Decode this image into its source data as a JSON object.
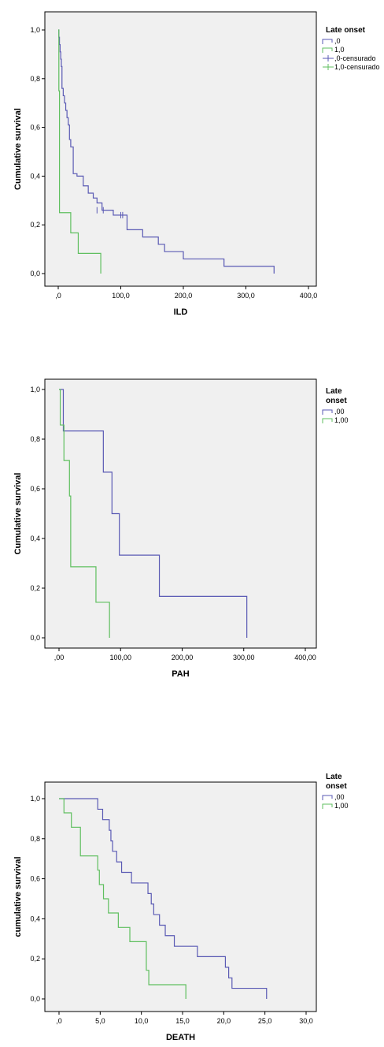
{
  "chart_data": [
    {
      "type": "line",
      "step": true,
      "grid": false,
      "legend_placement": "right",
      "xlabel": "ILD",
      "ylabel": "Cumulative survival",
      "xlim": [
        0,
        400
      ],
      "ylim": [
        0,
        1
      ],
      "x_ticks": [
        ",0",
        "100,0",
        "200,0",
        "300,0",
        "400,0"
      ],
      "x_tick_values": [
        0,
        100,
        200,
        300,
        400
      ],
      "y_ticks": [
        "0,0",
        "0,2",
        "0,4",
        "0,6",
        "0,8",
        "1,0"
      ],
      "y_tick_values": [
        0,
        0.2,
        0.4,
        0.6,
        0.8,
        1.0
      ],
      "legend_title": [
        "Late onset"
      ],
      "legend": [
        {
          "label": ",0",
          "color": "#5a5ab4",
          "symbol": "step"
        },
        {
          "label": "1,0",
          "color": "#5fbf5f",
          "symbol": "step"
        },
        {
          "label": ",0-censurado",
          "color": "#5a5ab4",
          "symbol": "cross"
        },
        {
          "label": "1,0-censurado",
          "color": "#5fbf5f",
          "symbol": "cross"
        }
      ],
      "series": [
        {
          "name": ",0",
          "color": "#5a5ab4",
          "x": [
            0,
            1,
            2,
            3,
            4,
            5,
            6,
            8,
            10,
            12,
            14,
            16,
            18,
            20,
            24,
            30,
            40,
            48,
            56,
            62,
            70,
            88,
            110,
            135,
            160,
            170,
            180,
            200,
            265,
            345
          ],
          "y": [
            1.0,
            0.97,
            0.94,
            0.91,
            0.88,
            0.85,
            0.76,
            0.73,
            0.7,
            0.67,
            0.64,
            0.61,
            0.55,
            0.52,
            0.41,
            0.4,
            0.36,
            0.33,
            0.31,
            0.29,
            0.26,
            0.24,
            0.18,
            0.15,
            0.12,
            0.09,
            0.09,
            0.06,
            0.03,
            0.0
          ]
        },
        {
          "name": "1,0",
          "color": "#5fbf5f",
          "x": [
            0,
            1,
            2,
            20,
            32,
            68
          ],
          "y": [
            1.0,
            0.75,
            0.25,
            0.167,
            0.083,
            0.0
          ]
        }
      ],
      "censored": [
        {
          "series": ",0",
          "x": [
            62,
            72,
            100,
            103
          ],
          "y": [
            0.26,
            0.26,
            0.24,
            0.24
          ]
        }
      ]
    },
    {
      "type": "line",
      "step": true,
      "grid": false,
      "legend_placement": "right",
      "xlabel": "PAH",
      "ylabel": "Cumulative survival",
      "xlim": [
        0,
        400
      ],
      "ylim": [
        0,
        1
      ],
      "x_ticks": [
        ",00",
        "100,00",
        "200,00",
        "300,00",
        "400,00"
      ],
      "x_tick_values": [
        0,
        100,
        200,
        300,
        400
      ],
      "y_ticks": [
        "0,0",
        "0,2",
        "0,4",
        "0,6",
        "0,8",
        "1,0"
      ],
      "y_tick_values": [
        0,
        0.2,
        0.4,
        0.6,
        0.8,
        1.0
      ],
      "legend_title": [
        "Late",
        "onset"
      ],
      "legend": [
        {
          "label": ",00",
          "color": "#5a5ab4",
          "symbol": "step"
        },
        {
          "label": "1,00",
          "color": "#5fbf5f",
          "symbol": "step"
        }
      ],
      "series": [
        {
          "name": ",00",
          "color": "#5a5ab4",
          "x": [
            0,
            7,
            72,
            86,
            98,
            163,
            305
          ],
          "y": [
            1.0,
            0.833,
            0.667,
            0.5,
            0.333,
            0.167,
            0.0
          ]
        },
        {
          "name": "1,00",
          "color": "#5fbf5f",
          "x": [
            0,
            2,
            8,
            17,
            19,
            60,
            82
          ],
          "y": [
            1.0,
            0.857,
            0.714,
            0.571,
            0.286,
            0.143,
            0.0
          ]
        }
      ],
      "censored": []
    },
    {
      "type": "line",
      "step": true,
      "grid": false,
      "legend_placement": "right",
      "xlabel": "DEATH",
      "ylabel": "cumulative survival",
      "xlim": [
        0,
        30
      ],
      "ylim": [
        0,
        1
      ],
      "x_ticks": [
        ",0",
        "5,0",
        "10,0",
        "15,0",
        "20,0",
        "25,0",
        "30,0"
      ],
      "x_tick_values": [
        0,
        5,
        10,
        15,
        20,
        25,
        30
      ],
      "y_ticks": [
        "0,0",
        "0,2",
        "0,4",
        "0,6",
        "0,8",
        "1,0"
      ],
      "y_tick_values": [
        0,
        0.2,
        0.4,
        0.6,
        0.8,
        1.0
      ],
      "legend_title": [
        "Late",
        "onset"
      ],
      "legend": [
        {
          "label": ",00",
          "color": "#5a5ab4",
          "symbol": "step"
        },
        {
          "label": "1,00",
          "color": "#5fbf5f",
          "symbol": "step"
        }
      ],
      "series": [
        {
          "name": ",00",
          "color": "#5a5ab4",
          "x": [
            0,
            4.7,
            5.3,
            6.1,
            6.3,
            6.5,
            7.0,
            7.6,
            8.8,
            10.8,
            11.2,
            11.5,
            12.2,
            12.9,
            14.0,
            16.8,
            20.2,
            20.6,
            21.0,
            25.2
          ],
          "y": [
            1.0,
            0.947,
            0.895,
            0.842,
            0.789,
            0.737,
            0.684,
            0.632,
            0.579,
            0.526,
            0.474,
            0.421,
            0.368,
            0.316,
            0.263,
            0.211,
            0.158,
            0.105,
            0.053,
            0.0
          ]
        },
        {
          "name": "1,00",
          "color": "#5fbf5f",
          "x": [
            0,
            0.6,
            1.5,
            2.6,
            4.7,
            4.9,
            5.4,
            6.0,
            7.2,
            8.6,
            10.6,
            10.9,
            15.4
          ],
          "y": [
            1.0,
            0.929,
            0.857,
            0.714,
            0.643,
            0.571,
            0.5,
            0.429,
            0.357,
            0.286,
            0.143,
            0.071,
            0.0
          ]
        }
      ],
      "censored": []
    }
  ]
}
